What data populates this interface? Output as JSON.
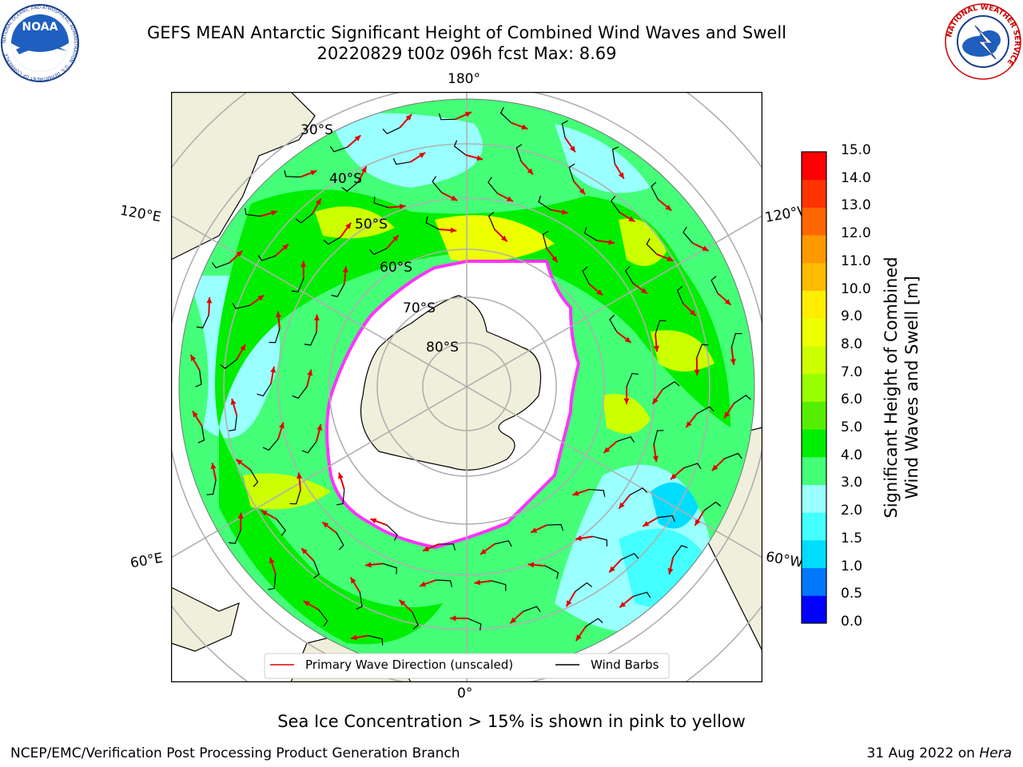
{
  "header": {
    "title_line1": "GEFS MEAN Antarctic Significant Height of Combined Wind Waves and Swell",
    "title_line2": "20220829 t00z 096h fcst   Max: 8.69"
  },
  "logos": {
    "noaa_text": "NOAA",
    "noaa_ring_text": "NATIONAL OCEANIC AND ATMOSPHERIC ADMINISTRATION · U.S. DEPARTMENT OF COMMERCE",
    "nws_ring_text": "NATIONAL WEATHER SERVICE"
  },
  "map": {
    "projection": "south-polar-stereographic",
    "lon_labels": {
      "top": "180°",
      "bottom": "0°",
      "upper_left": "120°E",
      "upper_right": "120°W",
      "lower_left": "60°E",
      "lower_right": "60°W"
    },
    "lat_labels": [
      "30°S",
      "40°S",
      "50°S",
      "60°S",
      "70°S",
      "80°S"
    ],
    "legend": {
      "wave_direction": "Primary Wave Direction (unscaled)",
      "wind_barbs": "Wind Barbs"
    }
  },
  "colorbar": {
    "title_line1": "Significant Height of Combined",
    "title_line2": "Wind Waves and Swell [m]",
    "ticks": [
      "15.0",
      "14.0",
      "13.0",
      "12.0",
      "11.0",
      "10.0",
      "9.0",
      "8.0",
      "7.0",
      "6.0",
      "5.0",
      "4.0",
      "3.0",
      "2.0",
      "1.5",
      "1.0",
      "0.5",
      "0.0"
    ],
    "colors": [
      "#0000ff",
      "#0077ff",
      "#00ddff",
      "#44ffff",
      "#99ffff",
      "#44ff77",
      "#00ee00",
      "#55ee00",
      "#99ff00",
      "#ccff00",
      "#eeff00",
      "#ffee00",
      "#ffbb00",
      "#ff9900",
      "#ff6600",
      "#ff3300",
      "#ff0000"
    ]
  },
  "footer": {
    "note": "Sea Ice Concentration > 15% is shown in pink to yellow",
    "left": "NCEP/EMC/Verification Post Processing Product Generation Branch",
    "right_prefix": "31 Aug 2022 on ",
    "right_host": "Hera"
  }
}
